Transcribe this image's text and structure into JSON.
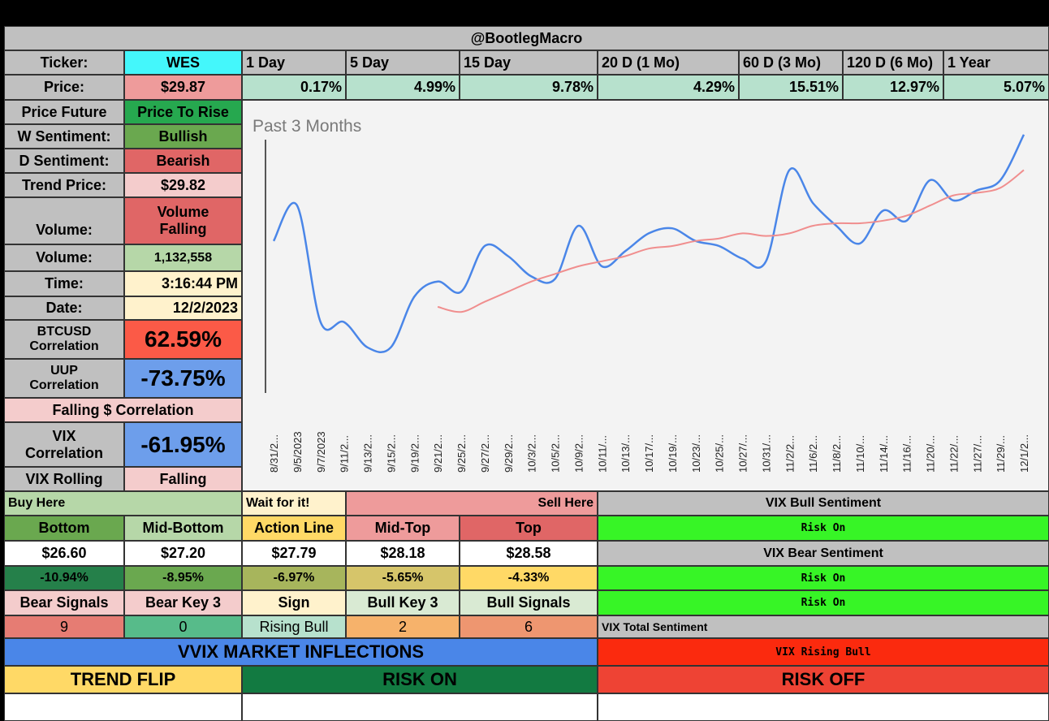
{
  "header": {
    "title": "@BootlegMacro"
  },
  "ticker_row": {
    "label": "Ticker:",
    "value": "WES",
    "periods": [
      "1 Day",
      "5 Day",
      "15 Day",
      "20 D (1 Mo)",
      "60 D (3 Mo)",
      "120 D (6 Mo)",
      "1 Year"
    ]
  },
  "price_row": {
    "label": "Price:",
    "value": "$29.87",
    "changes": [
      "0.17%",
      "4.99%",
      "9.78%",
      "4.29%",
      "15.51%",
      "12.97%",
      "5.07%"
    ]
  },
  "left_panel": {
    "price_future": {
      "label": "Price Future",
      "value": "Price To Rise"
    },
    "w_sentiment": {
      "label": "W Sentiment:",
      "value": "Bullish"
    },
    "d_sentiment": {
      "label": "D Sentiment:",
      "value": "Bearish"
    },
    "trend_price": {
      "label": "Trend Price:",
      "value": "$29.82"
    },
    "volume_trend": {
      "label": "Volume:",
      "value_line1": "Volume",
      "value_line2": "Falling"
    },
    "volume": {
      "label": "Volume:",
      "value": "1,132,558"
    },
    "time": {
      "label": "Time:",
      "value": "3:16:44 PM"
    },
    "date": {
      "label": "Date:",
      "value": "12/2/2023"
    },
    "btc_corr": {
      "label_line1": "BTCUSD",
      "label_line2": "Correlation",
      "value": "62.59%"
    },
    "uup_corr": {
      "label_line1": "UUP",
      "label_line2": "Correlation",
      "value": "-73.75%"
    },
    "falling_corr": "Falling $ Correlation",
    "vix_corr": {
      "label_line1": "VIX",
      "label_line2": "Correlation",
      "value": "-61.95%"
    },
    "vix_rolling": {
      "label": "VIX Rolling",
      "value": "Falling"
    }
  },
  "levels": {
    "buy_here": "Buy Here",
    "wait": "Wait for it!",
    "sell_here": "Sell Here",
    "headers": [
      "Bottom",
      "Mid-Bottom",
      "Action Line",
      "Mid-Top",
      "Top"
    ],
    "prices": [
      "$26.60",
      "$27.20",
      "$27.79",
      "$28.18",
      "$28.58"
    ],
    "pcts": [
      "-10.94%",
      "-8.95%",
      "-6.97%",
      "-5.65%",
      "-4.33%"
    ],
    "signal_headers": [
      "Bear Signals",
      "Bear Key 3",
      "Sign",
      "Bull Key 3",
      "Bull Signals"
    ],
    "signal_values": [
      "9",
      "0",
      "Rising Bull",
      "2",
      "6"
    ]
  },
  "vix_panel": {
    "bull_title": "VIX Bull Sentiment",
    "bull_value": "Risk On",
    "bear_title": "VIX Bear Sentiment",
    "bear_value1": "Risk On",
    "bear_value2": "Risk On",
    "total_title": "VIX Total Sentiment",
    "total_value": "VIX Rising Bull"
  },
  "vvix": {
    "title": "VVIX MARKET INFLECTIONS",
    "trend_flip": "TREND FLIP",
    "risk_on": "RISK ON",
    "risk_off": "RISK OFF"
  },
  "colors": {
    "gray": "#c0c0c0",
    "cyan": "#44f7fb",
    "pink": "#ee9b9b",
    "mint": "#b7e1cd",
    "green": "#6aa84f",
    "red": "#e06666",
    "lightgreen": "#b6d7a8",
    "lightyellow": "#fff2cc",
    "lightred": "#f4cccc",
    "bright_red": "#fb5a47",
    "blue": "#6d9eeb",
    "lime": "#37f526",
    "risk_red": "#fb2a0e",
    "vvix_blue": "#4a86e8",
    "yellow": "#ffd966",
    "darkgreen": "#127a41",
    "orange_red": "#ee4334",
    "series_blue": "#4a86e8",
    "series_pink": "#f08e8e"
  },
  "chart_data": {
    "type": "line",
    "title": "Past 3 Months",
    "x": [
      "8/31/2...",
      "9/5/2023",
      "9/7/2023",
      "9/11/2...",
      "9/13/2...",
      "9/15/2...",
      "9/19/2...",
      "9/21/2...",
      "9/25/2...",
      "9/27/2...",
      "9/29/2...",
      "10/3/2...",
      "10/5/2...",
      "10/9/2...",
      "10/11/...",
      "10/13/...",
      "10/17/...",
      "10/19/...",
      "10/23/...",
      "10/25/...",
      "10/27/...",
      "10/31/...",
      "11/2/2...",
      "11/6/2...",
      "11/8/2...",
      "11/10/...",
      "11/14/...",
      "11/16/...",
      "11/20/...",
      "11/22/...",
      "11/27/...",
      "11/29/...",
      "12/1/2..."
    ],
    "series": [
      {
        "values": [
          0.6,
          0.74,
          0.28,
          0.28,
          0.18,
          0.18,
          0.38,
          0.44,
          0.4,
          0.58,
          0.54,
          0.46,
          0.45,
          0.66,
          0.5,
          0.56,
          0.63,
          0.65,
          0.6,
          0.58,
          0.53,
          0.52,
          0.88,
          0.75,
          0.66,
          0.59,
          0.72,
          0.68,
          0.84,
          0.76,
          0.8,
          0.84,
          1.02
        ]
      },
      {
        "values": [
          null,
          null,
          null,
          null,
          null,
          null,
          null,
          0.34,
          0.32,
          0.36,
          0.4,
          0.44,
          0.47,
          0.5,
          0.52,
          0.54,
          0.57,
          0.58,
          0.6,
          0.61,
          0.63,
          0.62,
          0.63,
          0.66,
          0.67,
          0.67,
          0.68,
          0.7,
          0.74,
          0.78,
          0.79,
          0.81,
          0.88
        ]
      }
    ]
  }
}
